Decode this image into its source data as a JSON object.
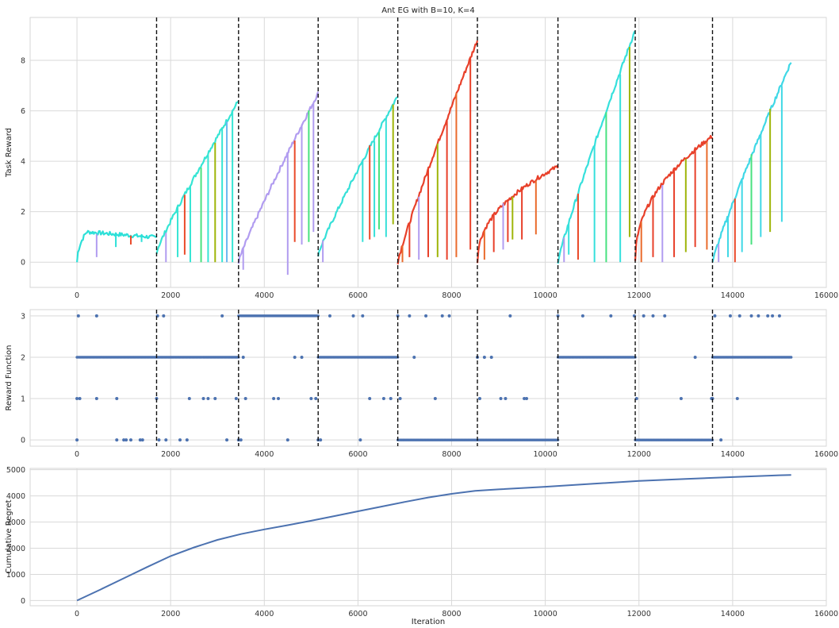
{
  "chart_data": [
    {
      "type": "line",
      "title": "Ant EG with B=10, K=4",
      "xlabel": "",
      "ylabel": "Task Reward",
      "xlim": [
        -1000,
        16000
      ],
      "ylim": [
        -1,
        9.7
      ],
      "xticks": [
        0,
        2000,
        4000,
        6000,
        8000,
        10000,
        12000,
        14000,
        16000
      ],
      "yticks": [
        0,
        2,
        4,
        6,
        8
      ],
      "grid": true,
      "vlines": [
        1700,
        3450,
        5150,
        6850,
        8550,
        10270,
        11920,
        13570
      ],
      "segments": [
        {
          "x_start": 0,
          "x_end": 1700,
          "color": "#2de0d8",
          "plateau": 1.2,
          "end": 0.95,
          "shape": "plateau",
          "drops": [
            [
              420,
              0.2
            ],
            [
              830,
              0.6
            ],
            [
              1150,
              0.7
            ],
            [
              1380,
              0.8
            ]
          ]
        },
        {
          "x_start": 1700,
          "x_end": 3450,
          "color": "#36e5d4",
          "start": 0.4,
          "end": 6.4,
          "shape": "rise",
          "drops": [
            [
              1900,
              0.0
            ],
            [
              2150,
              0.2
            ],
            [
              2300,
              0.3
            ],
            [
              2420,
              0.0
            ],
            [
              2650,
              0.0
            ],
            [
              2800,
              0.0
            ],
            [
              2950,
              0.0
            ],
            [
              3100,
              0.0
            ],
            [
              3200,
              0.0
            ],
            [
              3320,
              0.0
            ]
          ]
        },
        {
          "x_start": 3450,
          "x_end": 5150,
          "color": "#b19cf0",
          "start": 0.0,
          "end": 6.7,
          "shape": "rise",
          "drops": [
            [
              3550,
              -0.3
            ],
            [
              4500,
              -0.5
            ],
            [
              4650,
              0.8
            ],
            [
              4800,
              0.7
            ],
            [
              4950,
              0.8
            ],
            [
              5050,
              1.2
            ]
          ]
        },
        {
          "x_start": 5150,
          "x_end": 6850,
          "color": "#36e0d8",
          "start": 0.3,
          "end": 6.6,
          "shape": "rise",
          "drops": [
            [
              5250,
              0.0
            ],
            [
              6100,
              0.8
            ],
            [
              6250,
              0.9
            ],
            [
              6350,
              1.0
            ],
            [
              6450,
              1.3
            ],
            [
              6600,
              1.0
            ],
            [
              6750,
              1.5
            ]
          ]
        },
        {
          "x_start": 6850,
          "x_end": 8550,
          "color": "#e8402a",
          "start": 0.0,
          "end": 8.8,
          "shape": "rise",
          "drops": [
            [
              6950,
              0.0
            ],
            [
              7100,
              0.2
            ],
            [
              7300,
              0.1
            ],
            [
              7500,
              0.2
            ],
            [
              7700,
              0.2
            ],
            [
              7900,
              0.1
            ],
            [
              8100,
              0.2
            ],
            [
              8400,
              0.5
            ]
          ]
        },
        {
          "x_start": 8550,
          "x_end": 10270,
          "color": "#e8402a",
          "start": 0.0,
          "end": 3.8,
          "shape": "sqrt",
          "drops": [
            [
              8700,
              0.1
            ],
            [
              8900,
              0.4
            ],
            [
              9100,
              0.5
            ],
            [
              9200,
              0.8
            ],
            [
              9300,
              0.9
            ],
            [
              9500,
              0.9
            ],
            [
              9800,
              1.1
            ]
          ]
        },
        {
          "x_start": 10270,
          "x_end": 11920,
          "color": "#36e0dc",
          "start": 0.0,
          "end": 9.2,
          "shape": "rise",
          "drops": [
            [
              10400,
              0.0
            ],
            [
              10500,
              0.3
            ],
            [
              10700,
              0.1
            ],
            [
              11050,
              0.0
            ],
            [
              11300,
              0.0
            ],
            [
              11600,
              0.0
            ],
            [
              11800,
              1.0
            ]
          ]
        },
        {
          "x_start": 11920,
          "x_end": 13570,
          "color": "#e8402a",
          "start": 0.0,
          "end": 5.0,
          "shape": "sqrt",
          "drops": [
            [
              12050,
              0.0
            ],
            [
              12300,
              0.2
            ],
            [
              12500,
              0.0
            ],
            [
              12750,
              0.2
            ],
            [
              13000,
              0.4
            ],
            [
              13200,
              0.6
            ],
            [
              13450,
              0.5
            ]
          ]
        },
        {
          "x_start": 13570,
          "x_end": 15250,
          "color": "#3fd8e6",
          "start": 0.0,
          "end": 7.95,
          "shape": "rise",
          "drops": [
            [
              13700,
              0.0
            ],
            [
              13900,
              0.2
            ],
            [
              14050,
              0.0
            ],
            [
              14200,
              0.4
            ],
            [
              14400,
              0.7
            ],
            [
              14600,
              1.0
            ],
            [
              14800,
              1.2
            ],
            [
              15050,
              1.6
            ]
          ]
        }
      ]
    },
    {
      "type": "scatter",
      "title": "",
      "xlabel": "",
      "ylabel": "Reward Function",
      "xlim": [
        -1000,
        16000
      ],
      "ylim": [
        -0.15,
        3.15
      ],
      "xticks": [
        0,
        2000,
        4000,
        6000,
        8000,
        10000,
        12000,
        14000,
        16000
      ],
      "yticks": [
        0,
        1,
        2,
        3
      ],
      "grid": true,
      "vlines": [
        1700,
        3450,
        5150,
        6850,
        8550,
        10270,
        11920,
        13570
      ],
      "color": "#4c72b0",
      "dense_runs": [
        {
          "x_start": 0,
          "x_end": 1700,
          "y": 2
        },
        {
          "x_start": 1700,
          "x_end": 3450,
          "y": 2
        },
        {
          "x_start": 3450,
          "x_end": 5150,
          "y": 3
        },
        {
          "x_start": 5150,
          "x_end": 6850,
          "y": 2
        },
        {
          "x_start": 6850,
          "x_end": 8550,
          "y": 0
        },
        {
          "x_start": 8550,
          "x_end": 10270,
          "y": 0
        },
        {
          "x_start": 10270,
          "x_end": 11920,
          "y": 2
        },
        {
          "x_start": 11920,
          "x_end": 13570,
          "y": 0
        },
        {
          "x_start": 13570,
          "x_end": 15250,
          "y": 2
        }
      ],
      "scattered_points": [
        [
          0,
          0
        ],
        [
          0,
          1
        ],
        [
          30,
          3
        ],
        [
          60,
          1
        ],
        [
          420,
          3
        ],
        [
          420,
          1
        ],
        [
          850,
          0
        ],
        [
          850,
          1
        ],
        [
          1000,
          0
        ],
        [
          1050,
          0
        ],
        [
          1150,
          0
        ],
        [
          1350,
          0
        ],
        [
          1400,
          0
        ],
        [
          1700,
          1
        ],
        [
          1720,
          3
        ],
        [
          1750,
          0
        ],
        [
          1850,
          3
        ],
        [
          1900,
          0
        ],
        [
          2200,
          0
        ],
        [
          2350,
          0
        ],
        [
          2400,
          1
        ],
        [
          2700,
          1
        ],
        [
          2800,
          1
        ],
        [
          2950,
          1
        ],
        [
          3100,
          3
        ],
        [
          3200,
          0
        ],
        [
          3400,
          1
        ],
        [
          3450,
          0
        ],
        [
          3500,
          0
        ],
        [
          3550,
          2
        ],
        [
          3600,
          1
        ],
        [
          4200,
          1
        ],
        [
          4300,
          1
        ],
        [
          4500,
          0
        ],
        [
          4650,
          2
        ],
        [
          4800,
          2
        ],
        [
          5000,
          1
        ],
        [
          5100,
          1
        ],
        [
          5150,
          0
        ],
        [
          5200,
          0
        ],
        [
          5400,
          3
        ],
        [
          5900,
          3
        ],
        [
          6050,
          0
        ],
        [
          6100,
          3
        ],
        [
          6250,
          1
        ],
        [
          6550,
          1
        ],
        [
          6700,
          1
        ],
        [
          6850,
          3
        ],
        [
          6900,
          1
        ],
        [
          7100,
          3
        ],
        [
          7200,
          2
        ],
        [
          7450,
          3
        ],
        [
          7650,
          1
        ],
        [
          7800,
          3
        ],
        [
          7950,
          3
        ],
        [
          8550,
          2
        ],
        [
          8600,
          1
        ],
        [
          8700,
          2
        ],
        [
          8850,
          2
        ],
        [
          9050,
          1
        ],
        [
          9150,
          1
        ],
        [
          9250,
          3
        ],
        [
          9550,
          1
        ],
        [
          9600,
          1
        ],
        [
          10270,
          3
        ],
        [
          10800,
          3
        ],
        [
          11400,
          3
        ],
        [
          11900,
          3
        ],
        [
          11950,
          1
        ],
        [
          12100,
          3
        ],
        [
          12300,
          3
        ],
        [
          12550,
          3
        ],
        [
          12900,
          1
        ],
        [
          13200,
          2
        ],
        [
          13550,
          1
        ],
        [
          13570,
          1
        ],
        [
          13620,
          3
        ],
        [
          13750,
          0
        ],
        [
          13950,
          3
        ],
        [
          14100,
          1
        ],
        [
          14150,
          3
        ],
        [
          14400,
          3
        ],
        [
          14550,
          3
        ],
        [
          14750,
          3
        ],
        [
          14850,
          3
        ],
        [
          15000,
          3
        ]
      ]
    },
    {
      "type": "line",
      "title": "",
      "xlabel": "Iteration",
      "ylabel": "Cumulative Regret",
      "xlim": [
        -1000,
        16000
      ],
      "ylim": [
        -200,
        5050
      ],
      "xticks": [
        0,
        2000,
        4000,
        6000,
        8000,
        10000,
        12000,
        14000,
        16000
      ],
      "yticks": [
        0,
        1000,
        2000,
        3000,
        4000,
        5000
      ],
      "grid": true,
      "color": "#4c72b0",
      "x": [
        0,
        500,
        1000,
        1500,
        2000,
        2500,
        3000,
        3500,
        4000,
        4500,
        5000,
        5500,
        6000,
        6500,
        7000,
        7500,
        8000,
        8500,
        9000,
        10000,
        11000,
        12000,
        13000,
        14000,
        15000,
        15250
      ],
      "y": [
        0,
        420,
        850,
        1280,
        1700,
        2030,
        2320,
        2540,
        2720,
        2880,
        3050,
        3230,
        3410,
        3590,
        3770,
        3940,
        4080,
        4190,
        4250,
        4350,
        4460,
        4570,
        4650,
        4720,
        4790,
        4800
      ]
    }
  ]
}
